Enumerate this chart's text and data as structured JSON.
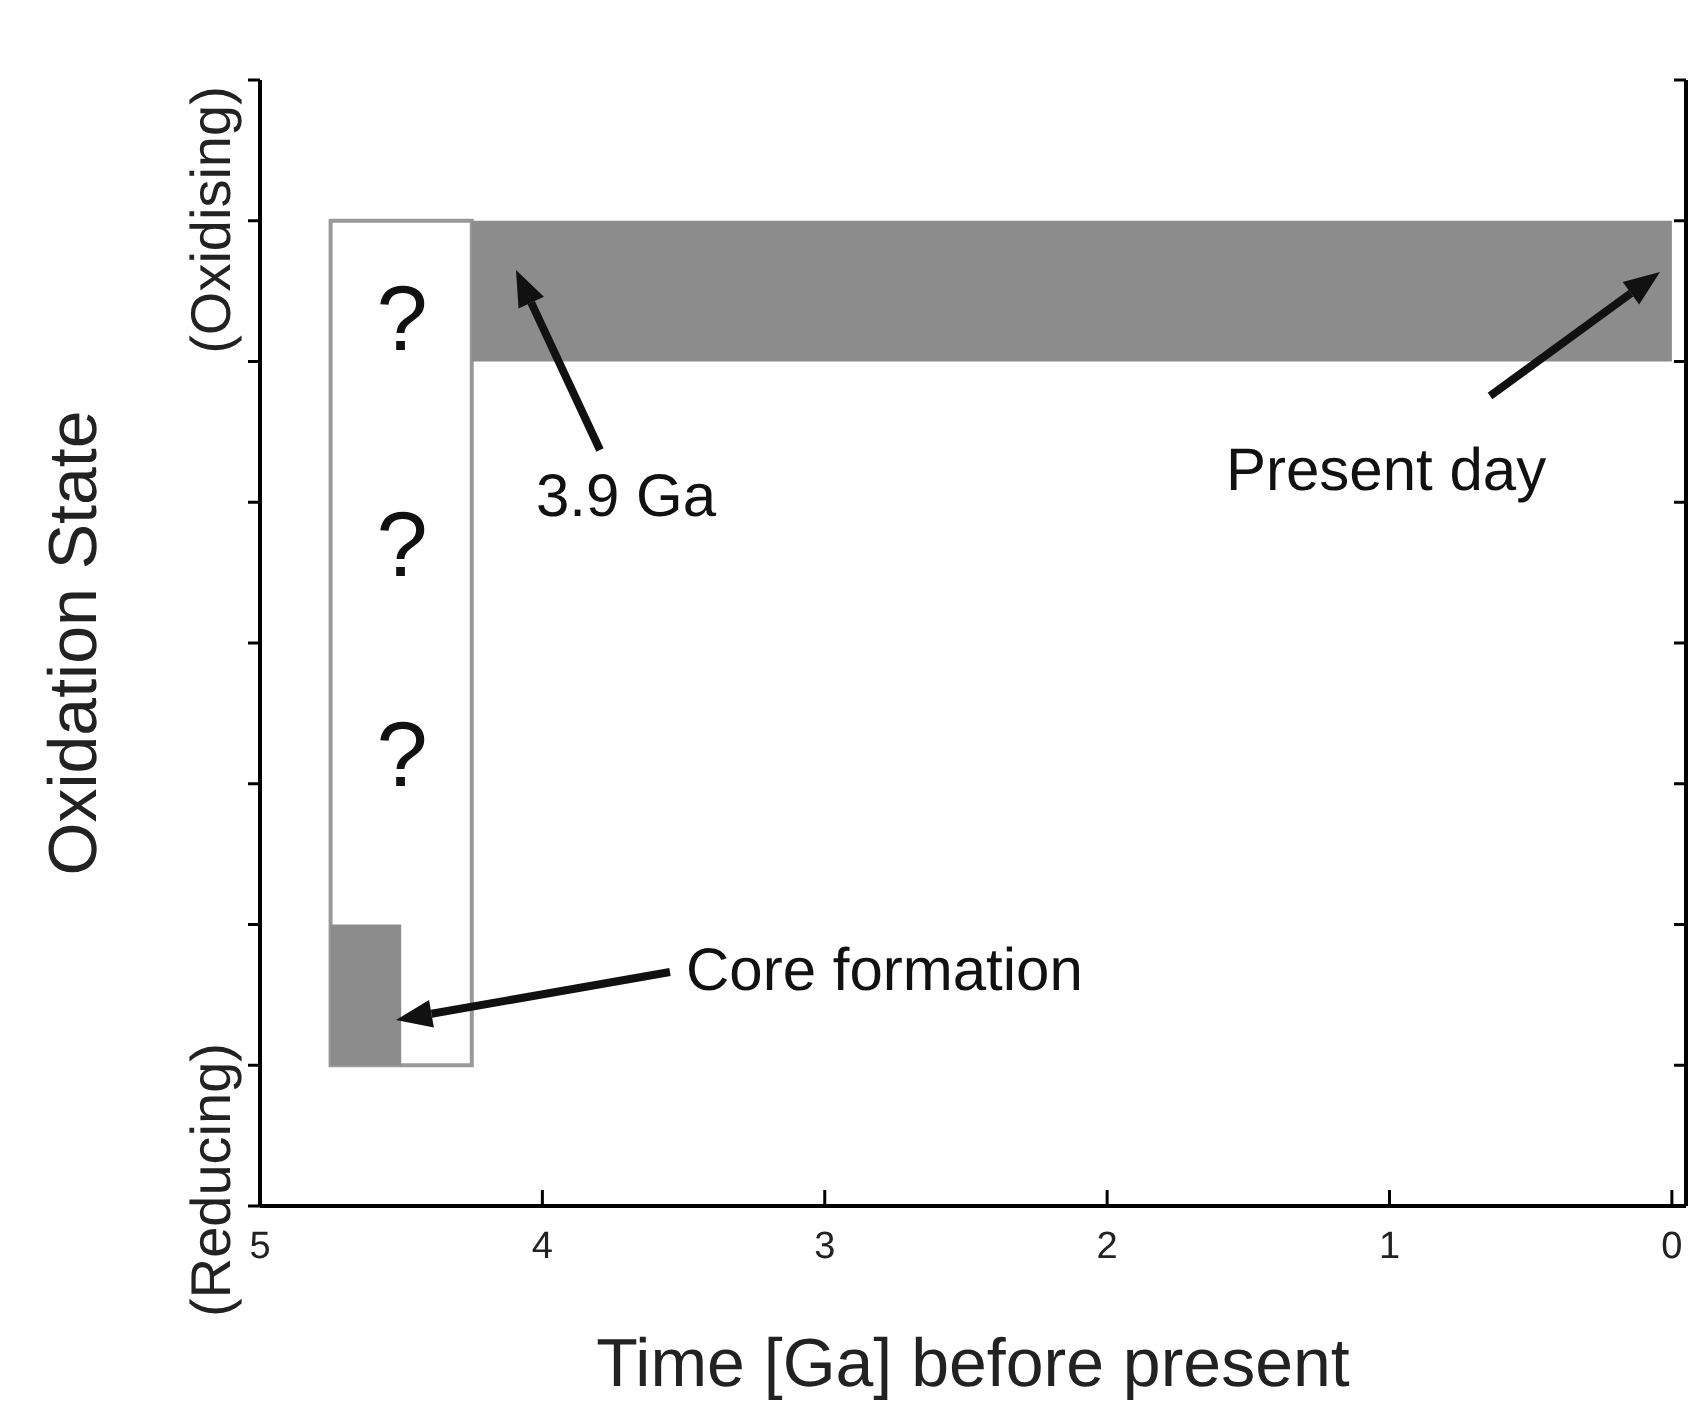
{
  "chart_data": {
    "type": "bar",
    "orientation": "horizontal",
    "xlabel": "Time [Ga] before present",
    "ylabel": "Oxidation State",
    "categories": [
      null,
      null,
      null,
      null,
      null,
      null,
      null,
      null
    ],
    "xlim": [
      5,
      -0.05
    ],
    "xticks": [
      5,
      4,
      3,
      2,
      1,
      0
    ],
    "series": [
      {
        "color": "#8c8c8c",
        "values": [
          null,
          4.25,
          null,
          null,
          null,
          null,
          0.25,
          null
        ],
        "base": [
          null,
          0,
          null,
          null,
          null,
          null,
          4.5,
          null
        ]
      }
    ],
    "bands": [
      {
        "axis": "x",
        "from": 4.75,
        "to": 4.25,
        "color": "#ffffff"
      }
    ],
    "annotations": [
      "(Oxidising)",
      "(Reducing)",
      "?",
      "?",
      "?",
      "3.9 Ga",
      "Present day",
      "Core formation"
    ],
    "grid": false
  }
}
